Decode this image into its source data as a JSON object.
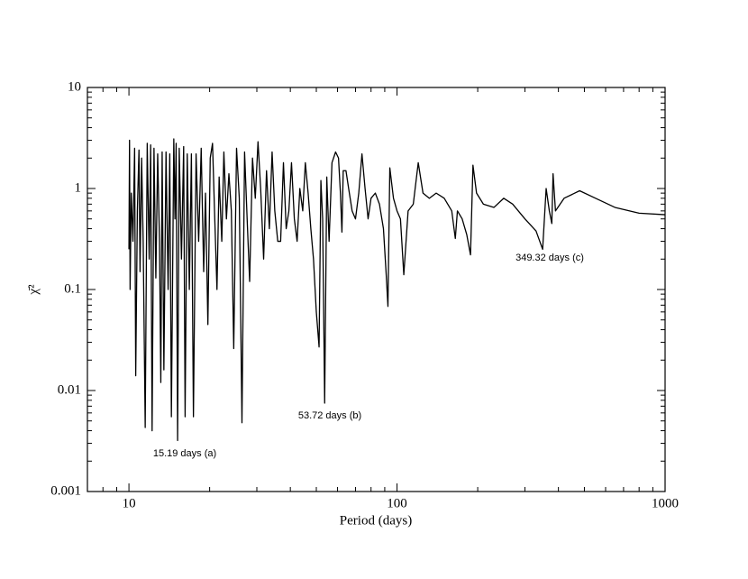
{
  "chart_data": {
    "type": "line",
    "x_label": "Period (days)",
    "y_label": "χ̄²",
    "xscale": "log",
    "yscale": "log",
    "xlim": [
      7,
      1000
    ],
    "ylim": [
      0.001,
      10
    ],
    "xticks": [
      10,
      100,
      1000
    ],
    "yticks": [
      0.001,
      0.01,
      0.1,
      1,
      10
    ],
    "xminorticks": [
      7,
      8,
      9,
      20,
      30,
      40,
      50,
      60,
      70,
      80,
      90,
      200,
      300,
      400,
      500,
      600,
      700,
      800,
      900
    ],
    "yminorticks": [
      0.002,
      0.003,
      0.004,
      0.005,
      0.006,
      0.007,
      0.008,
      0.009,
      0.02,
      0.03,
      0.04,
      0.05,
      0.06,
      0.07,
      0.08,
      0.09,
      0.2,
      0.3,
      0.4,
      0.5,
      0.6,
      0.7,
      0.8,
      0.9,
      2,
      3,
      4,
      5,
      6,
      7,
      8,
      9
    ],
    "color": "#000000",
    "annotations": [
      "15.19 days (a)",
      "53.72 days (b)",
      "349.32 days (c)"
    ],
    "x": [
      10.0,
      10.05,
      10.1,
      10.2,
      10.35,
      10.5,
      10.6,
      10.75,
      10.9,
      11.0,
      11.15,
      11.3,
      11.5,
      11.7,
      11.9,
      12.05,
      12.2,
      12.4,
      12.6,
      12.8,
      13.0,
      13.15,
      13.3,
      13.5,
      13.75,
      14.0,
      14.2,
      14.4,
      14.7,
      14.85,
      15.0,
      15.19,
      15.4,
      15.7,
      16.0,
      16.2,
      16.5,
      16.8,
      17.1,
      17.4,
      17.8,
      18.2,
      18.6,
      19.0,
      19.3,
      19.7,
      20.1,
      20.5,
      20.9,
      21.3,
      21.7,
      22.2,
      22.6,
      23.1,
      23.6,
      24.1,
      24.6,
      25.2,
      25.8,
      26.4,
      27.0,
      27.6,
      28.2,
      28.9,
      29.6,
      30.3,
      31.0,
      31.8,
      32.6,
      33.4,
      34.2,
      35.0,
      35.9,
      36.8,
      37.7,
      38.6,
      39.5,
      40.4,
      41.4,
      42.4,
      43.4,
      44.5,
      45.5,
      46.6,
      47.7,
      48.8,
      50.0,
      51.2,
      52.0,
      52.8,
      53.72,
      54.7,
      55.8,
      57.2,
      59.0,
      60.5,
      61.5,
      62.3,
      63.0,
      64.5,
      66.0,
      68.0,
      70.0,
      72.0,
      74.0,
      76.0,
      78.0,
      80.0,
      83.0,
      86.0,
      89.0,
      91.0,
      92.5,
      94.0,
      97.0,
      100.0,
      103.0,
      106.0,
      110.0,
      115.0,
      120.0,
      125.0,
      132.0,
      140.0,
      150.0,
      160.0,
      165.0,
      168.0,
      175.0,
      182.0,
      188.0,
      192.0,
      198.0,
      210.0,
      230.0,
      250.0,
      270.0,
      300.0,
      330.0,
      349.32,
      360.0,
      370.0,
      378.0,
      382.0,
      390.0,
      420.0,
      480.0,
      550.0,
      650.0,
      800.0,
      1000.0
    ],
    "values": [
      0.25,
      3.0,
      0.1,
      0.9,
      0.3,
      2.5,
      0.014,
      0.6,
      2.4,
      0.15,
      2.0,
      0.3,
      0.0043,
      2.8,
      0.2,
      2.7,
      0.004,
      2.5,
      0.13,
      2.2,
      0.3,
      0.012,
      2.3,
      0.016,
      2.3,
      0.1,
      2.2,
      0.0055,
      3.1,
      0.5,
      2.8,
      0.0032,
      2.5,
      0.2,
      2.6,
      0.0055,
      2.2,
      0.1,
      2.2,
      0.0055,
      2.2,
      0.3,
      2.5,
      0.15,
      0.9,
      0.045,
      2.0,
      2.8,
      0.5,
      0.1,
      1.3,
      0.3,
      2.3,
      0.5,
      1.4,
      0.6,
      0.026,
      2.5,
      0.8,
      0.0048,
      2.3,
      0.5,
      0.12,
      2.0,
      0.8,
      2.9,
      1.0,
      0.2,
      1.5,
      0.4,
      2.3,
      0.6,
      0.3,
      0.3,
      1.8,
      0.4,
      0.6,
      1.8,
      0.5,
      0.3,
      1.0,
      0.6,
      1.8,
      0.9,
      0.4,
      0.2,
      0.06,
      0.027,
      1.2,
      0.5,
      0.0075,
      1.3,
      0.3,
      1.8,
      2.3,
      2.0,
      0.9,
      0.37,
      1.5,
      1.5,
      1.0,
      0.6,
      0.5,
      0.9,
      2.2,
      1.0,
      0.5,
      0.8,
      0.9,
      0.7,
      0.4,
      0.15,
      0.068,
      1.6,
      0.8,
      0.6,
      0.5,
      0.14,
      0.6,
      0.7,
      1.8,
      0.9,
      0.8,
      0.9,
      0.8,
      0.6,
      0.32,
      0.6,
      0.5,
      0.35,
      0.22,
      1.7,
      0.9,
      0.7,
      0.65,
      0.8,
      0.7,
      0.5,
      0.38,
      0.25,
      1.0,
      0.6,
      0.45,
      1.4,
      0.6,
      0.8,
      0.95,
      0.8,
      0.65,
      0.57,
      0.55
    ]
  }
}
